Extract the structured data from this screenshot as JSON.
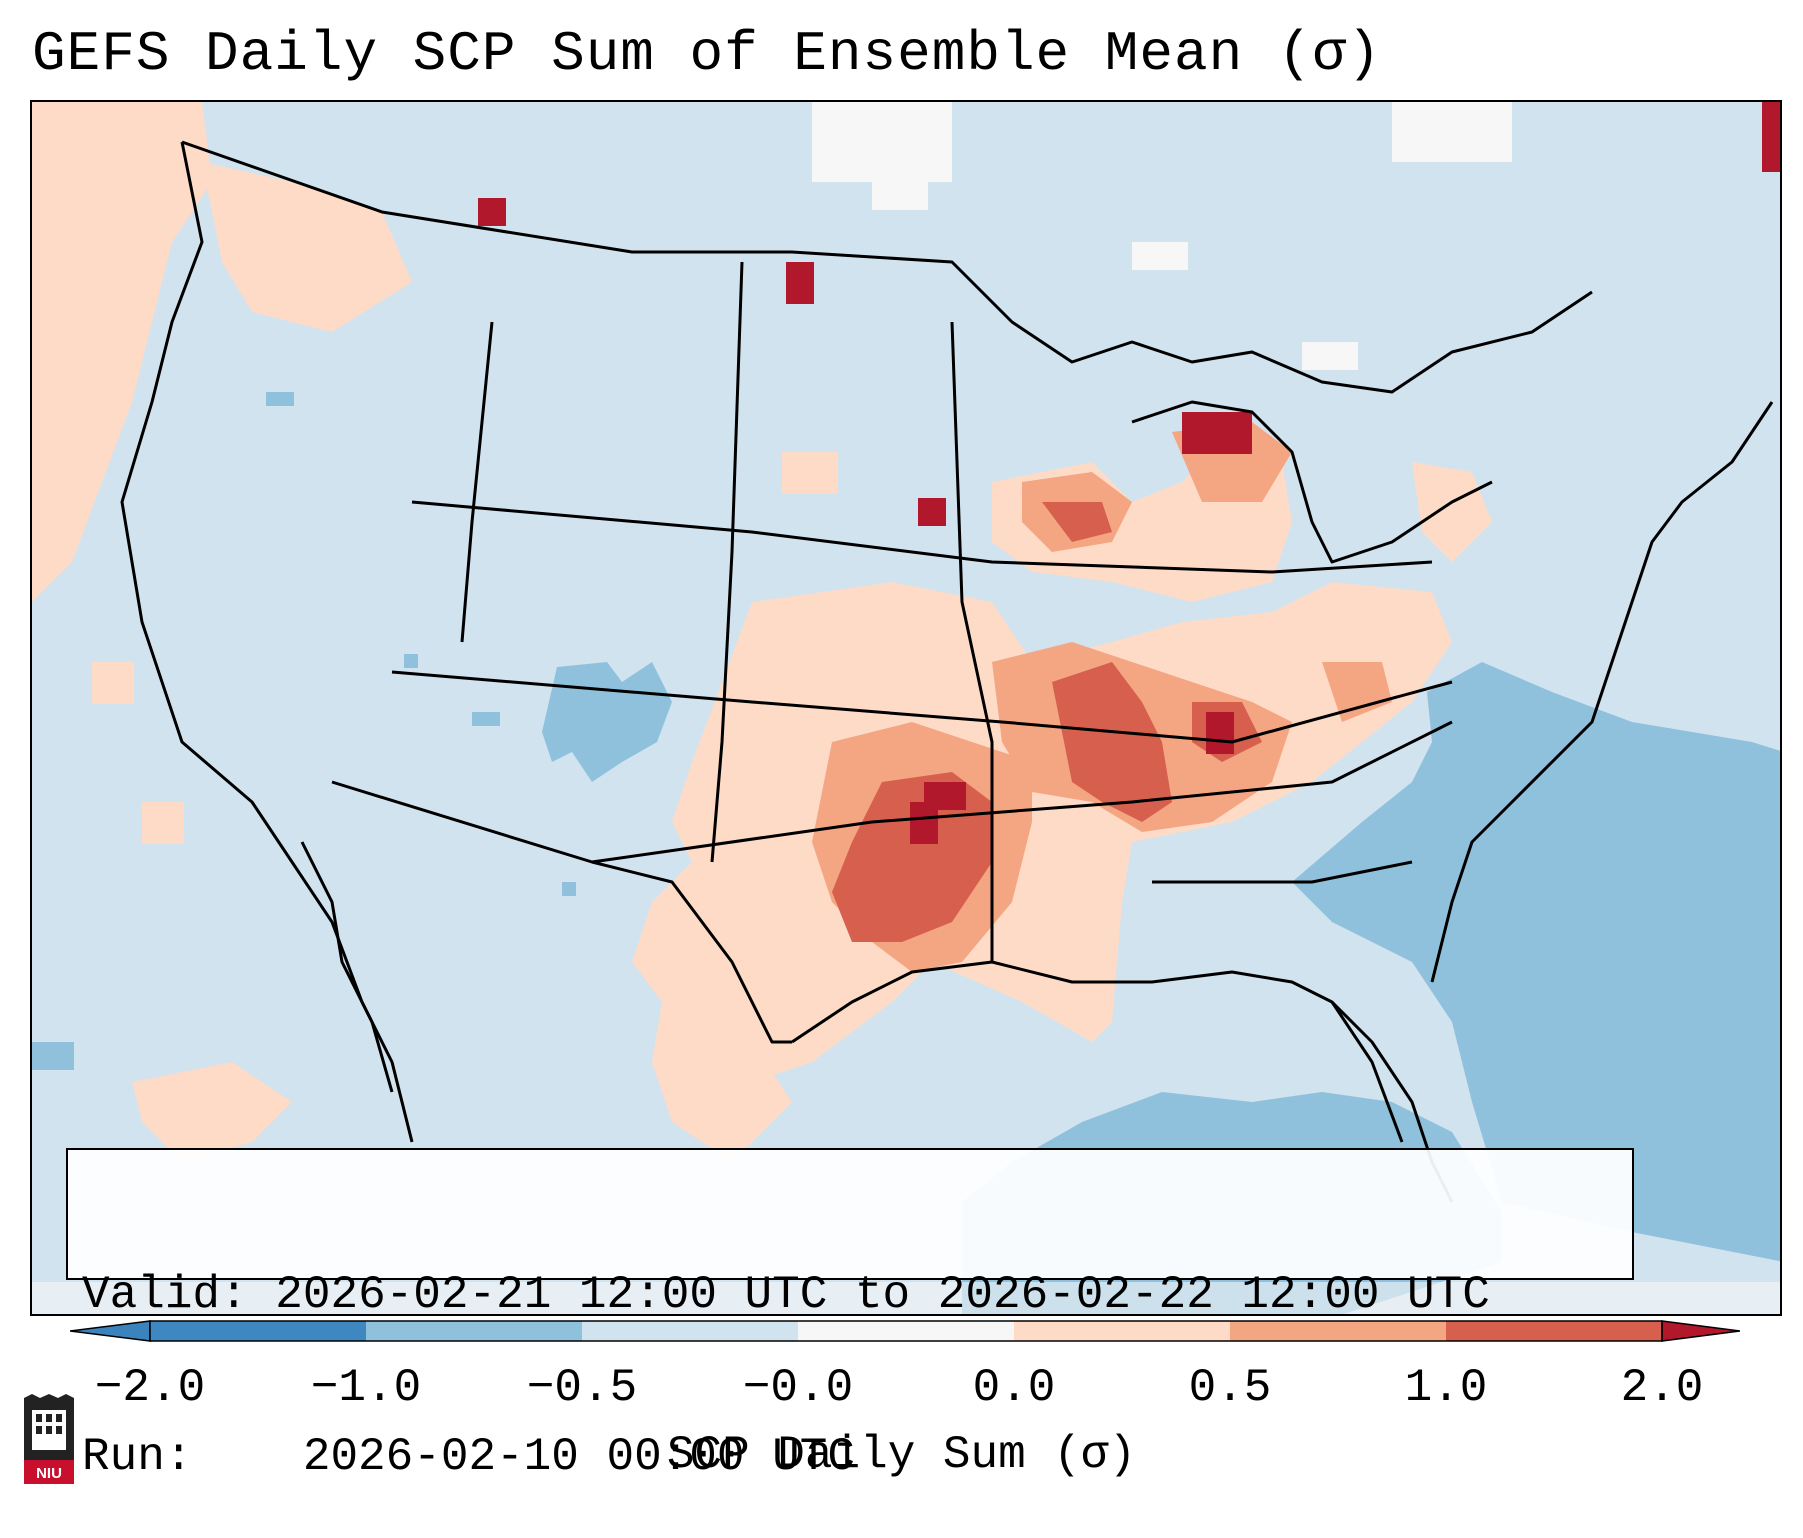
{
  "title": "GEFS Daily SCP Sum of Ensemble Mean (σ)",
  "info": {
    "valid_label": "Valid:",
    "valid_value": "2026-02-21 12:00 UTC to 2026-02-22 12:00 UTC",
    "run_label": "Run:",
    "run_value": "2026-02-10 00:00 UTC"
  },
  "colorbar": {
    "label": "SCP Daily Sum (σ)",
    "ticks": [
      "−2.0",
      "−1.0",
      "−0.5",
      "−0.0",
      "0.0",
      "0.5",
      "1.0",
      "2.0"
    ],
    "colors": {
      "extend_low": "#3b83bd",
      "bin1": "#3f87c0",
      "bin2": "#8fc1dd",
      "bin3": "#d1e3ef",
      "bin4": "#f7f7f7",
      "bin5": "#fddbc7",
      "bin6": "#f4a582",
      "bin7": "#d6604d",
      "extend_high": "#b2182b"
    }
  },
  "logo": {
    "text": "NIU"
  },
  "map": {
    "background_color": "#d1e3ef",
    "region": "Contiguous United States, southern Canada, northern Mexico, Gulf of Mexico",
    "high_areas": [
      "Oklahoma",
      "Kansas",
      "Missouri",
      "Illinois",
      "Indiana",
      "Michigan",
      "Wisconsin"
    ]
  }
}
